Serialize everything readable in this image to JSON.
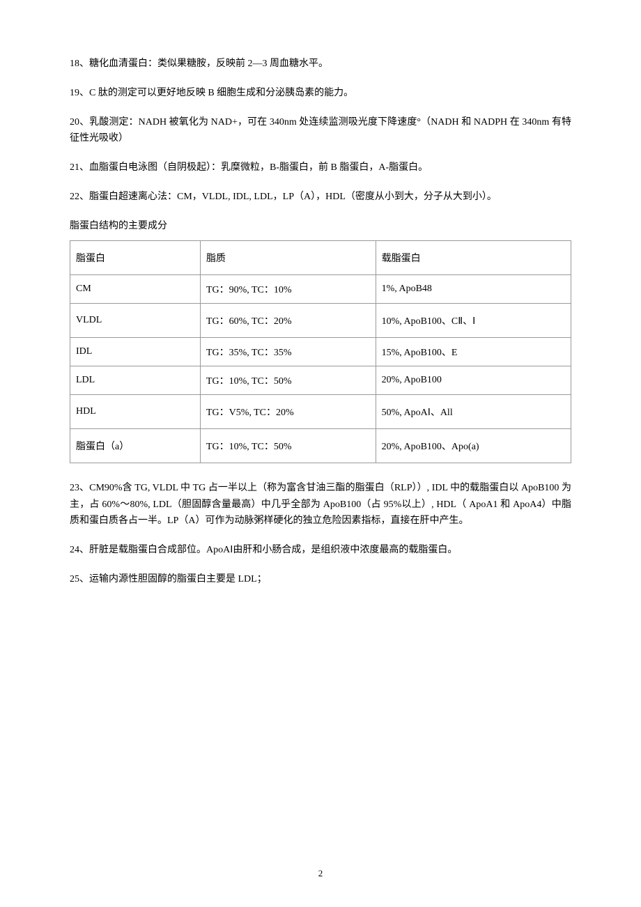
{
  "paragraphs": {
    "p18": "18、糖化血清蛋白：类似果糖胺，反映前 2—3 周血糖水平。",
    "p19": "19、C 肽的测定可以更好地反映 B 细胞生成和分泌胰岛素的能力。",
    "p20": "20、乳酸测定：NADH 被氧化为 NAD+，可在 340nm 处连续监测吸光度下降速度°（NADH 和 NADPH 在 340nm 有特征性光吸收）",
    "p21": "21、血脂蛋白电泳图（自阴极起）：乳糜微粒，B-脂蛋白，前 B 脂蛋白，A-脂蛋白。",
    "p22": "22、脂蛋白超速离心法：CM，VLDL, IDL, LDL，LP（A），HDL（密度从小到大，分子从大到小）。",
    "p23": "23、CM90%含 TG, VLDL 中 TG 占一半以上（称为富含甘油三酯的脂蛋白（RLP））, IDL 中的载脂蛋白以 ApoB100 为主，占 60%〜80%, LDL（胆固醇含量最高）中几乎全部为 ApoB100（占 95%以上）, HDL（ ApoA1 和 ApoA4）中脂质和蛋白质各占一半。LP（A）可作为动脉粥样硬化的独立危险因素指标，直接在肝中产生。",
    "p24": "24、肝脏是载脂蛋白合成部位。ApoAⅠ由肝和小肠合成，是组织液中浓度最高的载脂蛋白。",
    "p25": "25、运输内源性胆固醇的脂蛋白主要是 LDL；"
  },
  "tableTitle": "脂蛋白结构的主要成分",
  "table": {
    "header": {
      "c1": "脂蛋白",
      "c2": "脂质",
      "c3": "载脂蛋白"
    },
    "rows": [
      {
        "c1": "CM",
        "c2": "TG：90%, TC：10%",
        "c3": "1%, ApoB48"
      },
      {
        "c1": "VLDL",
        "c2": "TG：60%, TC：20%",
        "c3": "10%, ApoB100、CⅡ、Ⅰ"
      },
      {
        "c1": "IDL",
        "c2": "TG：35%, TC：35%",
        "c3": "15%, ApoB100、E"
      },
      {
        "c1": "LDL",
        "c2": "TG：10%, TC：50%",
        "c3": "20%, ApoB100"
      },
      {
        "c1": "HDL",
        "c2": "TG：V5%, TC：20%",
        "c3": "50%, ApoAⅠ、All"
      },
      {
        "c1": "脂蛋白（a）",
        "c2": "TG：10%, TC：50%",
        "c3": "20%, ApoB100、Apo(a)"
      }
    ]
  },
  "pageNumber": "2"
}
